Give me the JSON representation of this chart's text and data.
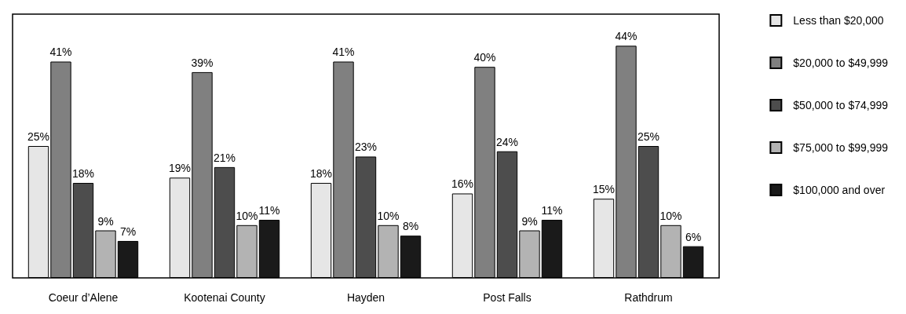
{
  "chart_data": {
    "type": "bar",
    "categories": [
      "Coeur d’Alene",
      "Kootenai County",
      "Hayden",
      "Post Falls",
      "Rathdrum"
    ],
    "series": [
      {
        "name": "Less than $20,000",
        "color": "#e6e6e6",
        "values": [
          25,
          19,
          18,
          16,
          15
        ],
        "value_labels": [
          "25%",
          "19%",
          "18%",
          "16%",
          "15%"
        ]
      },
      {
        "name": "$20,000 to $49,999",
        "color": "#808080",
        "values": [
          41,
          39,
          41,
          40,
          44
        ],
        "value_labels": [
          "41%",
          "39%",
          "41%",
          "40%",
          "44%"
        ]
      },
      {
        "name": "$50,000 to $74,999",
        "color": "#4d4d4d",
        "values": [
          18,
          21,
          23,
          24,
          25
        ],
        "value_labels": [
          "18%",
          "21%",
          "23%",
          "24%",
          "25%"
        ]
      },
      {
        "name": "$75,000 to $99,999",
        "color": "#b3b3b3",
        "values": [
          9,
          10,
          10,
          9,
          10
        ],
        "value_labels": [
          "9%",
          "10%",
          "10%",
          "9%",
          "10%"
        ]
      },
      {
        "name": "$100,000 and over",
        "color": "#1a1a1a",
        "values": [
          7,
          11,
          8,
          11,
          6
        ],
        "value_labels": [
          "7%",
          "11%",
          "8%",
          "11%",
          "6%"
        ]
      }
    ],
    "legend": "right"
  }
}
